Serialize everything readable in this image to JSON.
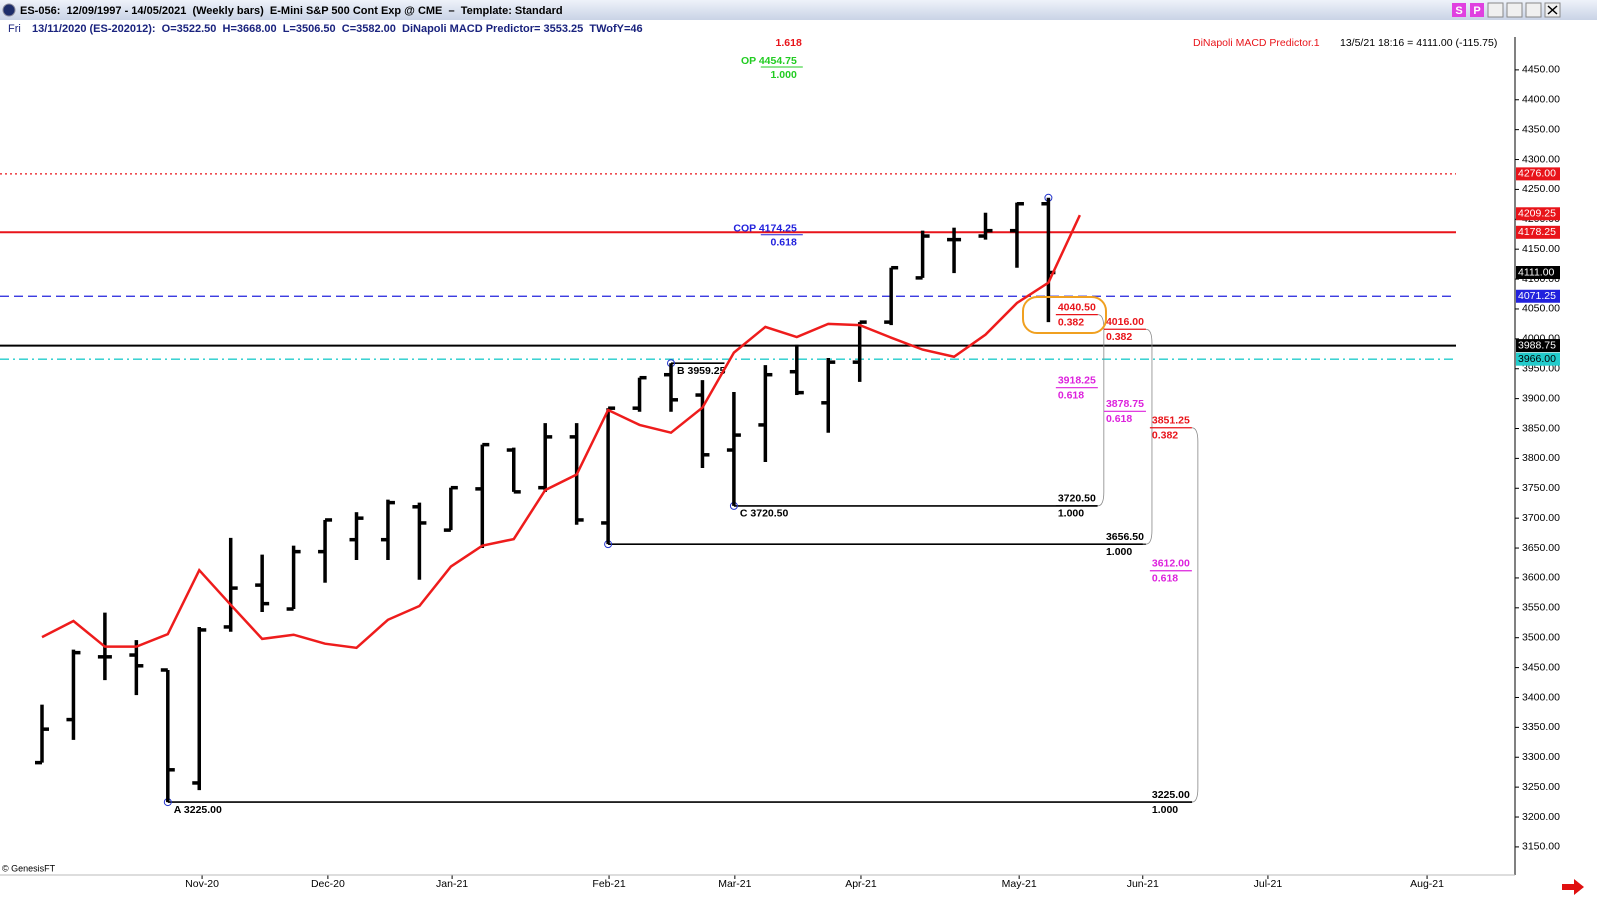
{
  "header": {
    "title": "ES-056:  12/09/1997 - 14/05/2021  (Weekly bars)  E-Mini S&P 500 Cont Exp @ CME  –  Template: Standard",
    "day": "Fri",
    "info": "13/11/2020 (ES-202012):  O=3522.50  H=3668.00  L=3506.50  C=3582.00  DiNapoli MACD Predictor= 3553.25  TWofY=46",
    "buttons": [
      "S",
      "P"
    ]
  },
  "chart_data": {
    "type": "ohlc",
    "indicator_name": "DiNapoli MACD Predictor.1",
    "indicator_readout": "13/5/21 18:16 = 4111.00 (-115.75)",
    "source": "© GenesisFT",
    "categories": [
      null,
      null,
      null,
      null,
      null,
      null,
      null,
      null,
      null,
      null,
      null,
      null,
      null,
      null,
      null,
      null,
      null,
      null,
      null,
      null,
      null,
      null,
      null,
      null,
      null,
      null,
      null,
      null,
      null,
      null,
      null,
      null,
      null,
      null
    ],
    "open": [
      3291,
      3363,
      3468,
      3471,
      3446,
      3257,
      3518,
      3588,
      3548,
      3644,
      3664,
      3664,
      3719,
      3680,
      3749,
      3814,
      3751,
      3836,
      3692,
      3884,
      3940,
      3906,
      3814,
      3856,
      3945,
      3893,
      3961,
      4028,
      4102,
      4166,
      4172,
      4181,
      4226,
      null
    ],
    "high": [
      3388,
      3480,
      3542,
      3496,
      3446,
      3518,
      3667,
      3639,
      3654,
      3697,
      3710,
      3731,
      3726,
      3751,
      3823,
      3818,
      3859,
      3859,
      3884,
      3935,
      3959.25,
      3931,
      3911,
      3956,
      3990,
      3968,
      4028,
      4119,
      4181,
      4186,
      4211,
      4228,
      4236,
      null
    ],
    "low": [
      3291,
      3329,
      3429,
      3404,
      3225,
      3245,
      3510,
      3543,
      3548,
      3592,
      3630,
      3630,
      3597,
      3680,
      3650,
      3744,
      3744,
      3689,
      3656.5,
      3878,
      3878,
      3784,
      3720.5,
      3794,
      3906,
      3843,
      3928,
      4023,
      4102,
      4110,
      4166,
      4119,
      4028,
      null
    ],
    "close": [
      3347,
      3475,
      3468,
      3453,
      3279,
      3513,
      3583,
      3557,
      3644,
      3697,
      3700,
      3726,
      3692,
      3751,
      3823,
      3744,
      3836,
      3697,
      3884,
      3935,
      3898,
      3806,
      3839,
      3940,
      3910,
      3961,
      4028,
      4119,
      4172,
      4166,
      4181,
      4226,
      4111,
      null
    ],
    "bar_color": "#000000",
    "line": {
      "color": "#ee1c1c",
      "values": [
        3501,
        3528,
        3485,
        3485,
        3506,
        3613,
        3555,
        3498,
        3505,
        3490,
        3483,
        3530,
        3553,
        3619,
        3654,
        3665,
        3747,
        3773,
        3881,
        3856,
        3843,
        3885,
        3977,
        4020,
        4003,
        4025,
        4023,
        4002,
        3982,
        3970,
        4007,
        4060,
        4094,
        4207
      ]
    },
    "xlim": [
      -1.3355,
      46.836
    ],
    "ylim": [
      3103,
      4505
    ],
    "xticks": [
      {
        "value": 5.09,
        "label": "Nov-20"
      },
      {
        "value": 9.09,
        "label": "Dec-20"
      },
      {
        "value": 13.04,
        "label": "Jan-21"
      },
      {
        "value": 18.03,
        "label": "Feb-21"
      },
      {
        "value": 22.03,
        "label": "Mar-21"
      },
      {
        "value": 26.04,
        "label": "Apr-21"
      },
      {
        "value": 31.07,
        "label": "May-21"
      },
      {
        "value": 35.0,
        "label": "Jun-21"
      },
      {
        "value": 38.98,
        "label": "Jul-21"
      },
      {
        "value": 44.04,
        "label": "Aug-21"
      }
    ],
    "yticks": [
      {
        "value": 3150,
        "label": "3150.00"
      },
      {
        "value": 3200,
        "label": "3200.00"
      },
      {
        "value": 3250,
        "label": "3250.00"
      },
      {
        "value": 3300,
        "label": "3300.00"
      },
      {
        "value": 3350,
        "label": "3350.00"
      },
      {
        "value": 3400,
        "label": "3400.00"
      },
      {
        "value": 3450,
        "label": "3450.00"
      },
      {
        "value": 3500,
        "label": "3500.00"
      },
      {
        "value": 3550,
        "label": "3550.00"
      },
      {
        "value": 3600,
        "label": "3600.00"
      },
      {
        "value": 3650,
        "label": "3650.00"
      },
      {
        "value": 3700,
        "label": "3700.00"
      },
      {
        "value": 3750,
        "label": "3750.00"
      },
      {
        "value": 3800,
        "label": "3800.00"
      },
      {
        "value": 3850,
        "label": "3850.00"
      },
      {
        "value": 3900,
        "label": "3900.00"
      },
      {
        "value": 3950,
        "label": "3950.00"
      },
      {
        "value": 4000,
        "label": "4000.00"
      },
      {
        "value": 4050,
        "label": "4050.00"
      },
      {
        "value": 4100,
        "label": "4100.00"
      },
      {
        "value": 4150,
        "label": "4150.00"
      },
      {
        "value": 4200,
        "label": "4200.00"
      },
      {
        "value": 4250,
        "label": "4250.00"
      },
      {
        "value": 4300,
        "label": "4300.00"
      },
      {
        "value": 4350,
        "label": "4350.00"
      },
      {
        "value": 4400,
        "label": "4400.00"
      },
      {
        "value": 4450,
        "label": "4450.00"
      }
    ],
    "levels": [
      {
        "value": 4276,
        "label": "4276.00",
        "color": "#e8141a",
        "line": "dotted"
      },
      {
        "value": 4209.25,
        "label": "4209.25",
        "color": "#e8141a"
      },
      {
        "value": 4178.25,
        "label": "4178.25",
        "color": "#e8141a",
        "line": "solid"
      },
      {
        "value": 4111,
        "label": "4111.00",
        "color": "#000000"
      },
      {
        "value": 4071.25,
        "label": "4071.25",
        "color": "#2222dd",
        "line": "dashed"
      },
      {
        "value": 3988.75,
        "label": "3988.75",
        "color": "#000000",
        "line": "solid"
      },
      {
        "value": 3966,
        "label": "3966.00",
        "color": "#22cccc",
        "line": "dashdot"
      }
    ],
    "pivots": [
      {
        "value": 3225,
        "x": 4,
        "to": 36.57,
        "label": "A 3225.00"
      },
      {
        "value": 3720.5,
        "x": 22,
        "to": 33.55,
        "label": "C 3720.50"
      },
      {
        "value": 3656.5,
        "x": 18,
        "to": 35.0
      },
      {
        "value": 3959.25,
        "x": 20,
        "to": 21.7,
        "label": "B 3959.25"
      },
      {
        "value": 4236,
        "x": 32
      }
    ],
    "projections": [
      {
        "x": 32.3,
        "levels": [
          {
            "value": 4040.5,
            "label": "4040.50",
            "ratio": "0.382",
            "color": "#e8141a"
          },
          {
            "value": 3918.25,
            "label": "3918.25",
            "ratio": "0.618",
            "color": "#dd22dd"
          },
          {
            "value": 3720.5,
            "label": "3720.50",
            "ratio": "1.000",
            "color": "#000000"
          }
        ]
      },
      {
        "x": 33.83,
        "levels": [
          {
            "value": 4016,
            "label": "4016.00",
            "ratio": "0.382",
            "color": "#e8141a"
          },
          {
            "value": 3878.75,
            "label": "3878.75",
            "ratio": "0.618",
            "color": "#dd22dd"
          },
          {
            "value": 3656.5,
            "label": "3656.50",
            "ratio": "1.000",
            "color": "#000000"
          }
        ]
      },
      {
        "x": 35.29,
        "levels": [
          {
            "value": 3851.25,
            "label": "3851.25",
            "ratio": "0.382",
            "color": "#e8141a"
          },
          {
            "value": 3612,
            "label": "3612.00",
            "ratio": "0.618",
            "color": "#dd22dd"
          },
          {
            "value": 3225,
            "label": "3225.00",
            "ratio": "1.000",
            "color": "#000000"
          }
        ]
      }
    ],
    "targets": [
      {
        "value": 4454.75,
        "x": 24,
        "label": "OP 4454.75",
        "ratio": "1.000",
        "color": "#22cc22"
      },
      {
        "value": 4174.25,
        "x": 24,
        "label": "COP 4174.25",
        "ratio": "0.618",
        "color": "#2222dd"
      }
    ],
    "extension_label": "1.618",
    "extension_color": "#e8141a"
  }
}
